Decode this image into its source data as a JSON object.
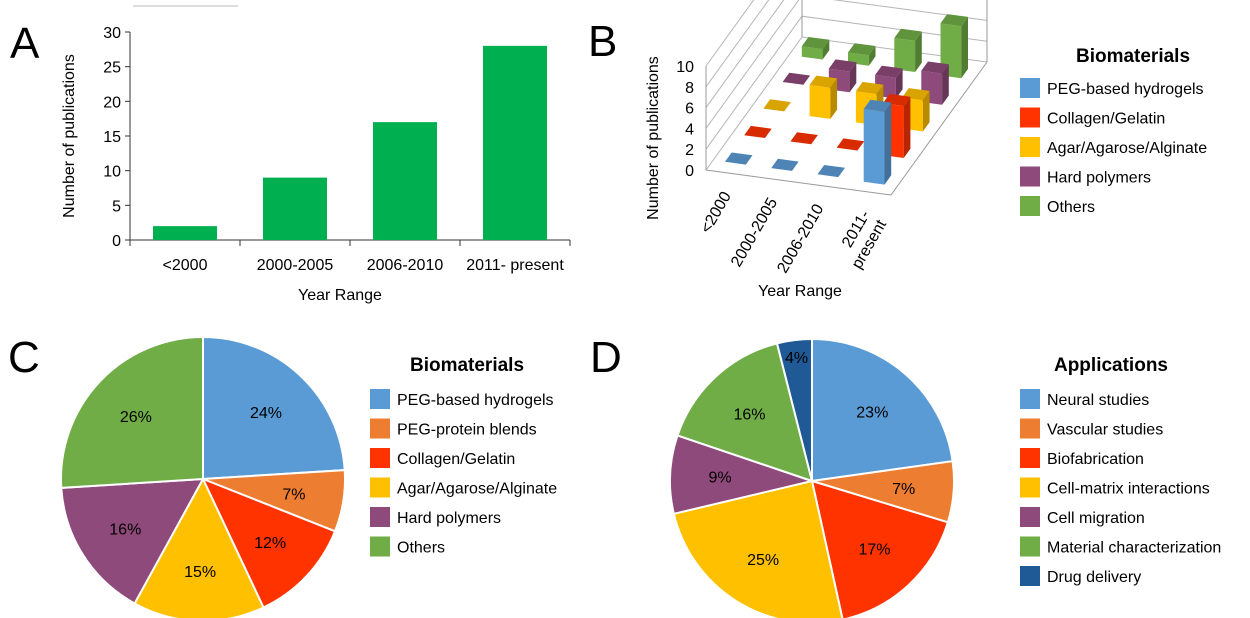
{
  "colors": {
    "green": "#00B050",
    "blue": "#5B9BD5",
    "orange": "#ED7D31",
    "red": "#FF3300",
    "yellow": "#FFC000",
    "purple": "#8E4A7A",
    "lightgreen": "#70AD47",
    "darkblue": "#1F5A96"
  },
  "chart_data": [
    {
      "panel": "A",
      "type": "bar",
      "categories": [
        "<2000",
        "2000-2005",
        "2006-2010",
        "2011- present"
      ],
      "values": [
        2,
        9,
        17,
        28
      ],
      "xlabel": "Year Range",
      "ylabel": "Number of publications",
      "ylim": [
        0,
        30
      ],
      "yticks": [
        0,
        5,
        10,
        15,
        20,
        25,
        30
      ],
      "grid": false
    },
    {
      "panel": "B",
      "type": "bar",
      "categories": [
        "<2000",
        "2000-2005",
        "2006-2010",
        "2011- present"
      ],
      "category_labels": [
        [
          "<2000"
        ],
        [
          "2000-2005"
        ],
        [
          "2006-2010"
        ],
        [
          "2011-",
          "present"
        ]
      ],
      "series": [
        {
          "name": "PEG-based hydrogels",
          "values": [
            0,
            0,
            0,
            7
          ],
          "color": "blue"
        },
        {
          "name": "Collagen/Gelatin",
          "values": [
            0,
            0,
            0,
            5
          ],
          "color": "red"
        },
        {
          "name": "Agar/Agarose/Alginate",
          "values": [
            0,
            3,
            3,
            3
          ],
          "color": "yellow"
        },
        {
          "name": "Hard polymers",
          "values": [
            0,
            2,
            2,
            3
          ],
          "color": "purple"
        },
        {
          "name": "Others",
          "values": [
            1,
            1,
            3,
            5
          ],
          "color": "lightgreen"
        }
      ],
      "legend_title": "Biomaterials",
      "xlabel": "Year Range",
      "ylabel": "Number of publications",
      "ylim": [
        0,
        10
      ],
      "yticks": [
        0,
        2,
        4,
        6,
        8,
        10
      ],
      "legend": "right",
      "grid": true
    },
    {
      "panel": "C",
      "type": "pie",
      "legend_title": "Biomaterials",
      "slices": [
        {
          "label": "PEG-based hydrogels",
          "value": 24,
          "text": "24%",
          "color": "blue"
        },
        {
          "label": "PEG-protein blends",
          "value": 7,
          "text": "7%",
          "color": "orange"
        },
        {
          "label": "Collagen/Gelatin",
          "value": 12,
          "text": "12%",
          "color": "red"
        },
        {
          "label": "Agar/Agarose/Alginate",
          "value": 15,
          "text": "15%",
          "color": "yellow"
        },
        {
          "label": "Hard polymers",
          "value": 16,
          "text": "16%",
          "color": "purple"
        },
        {
          "label": "Others",
          "value": 26,
          "text": "26%",
          "color": "lightgreen"
        }
      ],
      "legend": "right"
    },
    {
      "panel": "D",
      "type": "pie",
      "legend_title": "Applications",
      "slices": [
        {
          "label": "Neural studies",
          "value": 23,
          "text": "23%",
          "color": "blue"
        },
        {
          "label": "Vascular studies",
          "value": 7,
          "text": "7%",
          "color": "orange"
        },
        {
          "label": "Biofabrication",
          "value": 17,
          "text": "17%",
          "color": "red"
        },
        {
          "label": "Cell-matrix interactions",
          "value": 25,
          "text": "25%",
          "color": "yellow"
        },
        {
          "label": "Cell migration",
          "value": 9,
          "text": "9%",
          "color": "purple"
        },
        {
          "label": "Material characterization",
          "value": 16,
          "text": "16%",
          "color": "lightgreen"
        },
        {
          "label": "Drug delivery",
          "value": 4,
          "text": "4%",
          "color": "darkblue"
        }
      ],
      "legend": "right"
    }
  ]
}
